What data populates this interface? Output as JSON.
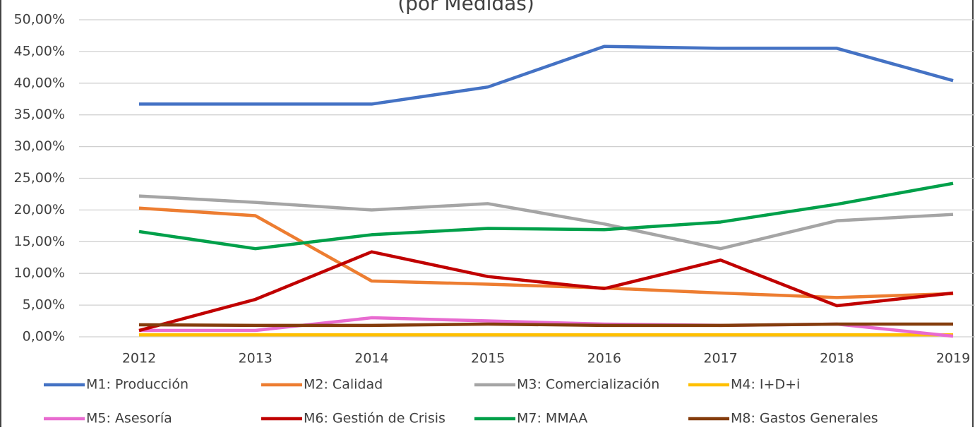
{
  "chart_data": {
    "type": "line",
    "title": "(por Medidas)",
    "categories": [
      "2012",
      "2013",
      "2014",
      "2015",
      "2016",
      "2017",
      "2018",
      "2019"
    ],
    "series": [
      {
        "name": "M1: Producción",
        "color": "#4472c4",
        "values": [
          36.7,
          36.7,
          36.7,
          39.4,
          45.8,
          45.5,
          45.5,
          40.4
        ]
      },
      {
        "name": "M2: Calidad",
        "color": "#ed7d31",
        "values": [
          20.3,
          19.1,
          8.8,
          8.3,
          7.7,
          6.9,
          6.2,
          6.8
        ]
      },
      {
        "name": "M3: Comercialización",
        "color": "#a5a5a5",
        "values": [
          22.2,
          21.2,
          20.0,
          21.0,
          17.8,
          13.9,
          18.3,
          19.3
        ]
      },
      {
        "name": "M4: I+D+i",
        "color": "#ffc000",
        "values": [
          0.3,
          0.3,
          0.3,
          0.3,
          0.3,
          0.3,
          0.3,
          0.3
        ]
      },
      {
        "name": "M5: Asesoría",
        "color": "#e86bd0",
        "values": [
          1.0,
          1.0,
          3.0,
          2.5,
          2.0,
          1.8,
          2.0,
          0.1
        ]
      },
      {
        "name": "M6: Gestión de Crisis",
        "color": "#c00000",
        "values": [
          1.0,
          5.9,
          13.4,
          9.5,
          7.6,
          12.1,
          4.9,
          6.9
        ]
      },
      {
        "name": "M7: MMAA",
        "color": "#00a04a",
        "values": [
          16.6,
          13.9,
          16.1,
          17.1,
          16.9,
          18.1,
          20.9,
          24.2
        ]
      },
      {
        "name": "M8: Gastos Generales",
        "color": "#843c0c",
        "values": [
          1.9,
          1.8,
          1.8,
          2.0,
          1.8,
          1.8,
          2.0,
          2.0
        ]
      }
    ],
    "ylim": [
      0,
      50
    ],
    "yticks": [
      {
        "value": 0,
        "label": "0,00%"
      },
      {
        "value": 5,
        "label": "5,00%"
      },
      {
        "value": 10,
        "label": "10,00%"
      },
      {
        "value": 15,
        "label": "15,00%"
      },
      {
        "value": 20,
        "label": "20,00%"
      },
      {
        "value": 25,
        "label": "25,00%"
      },
      {
        "value": 30,
        "label": "30,00%"
      },
      {
        "value": 35,
        "label": "35,00%"
      },
      {
        "value": 40,
        "label": "40,00%"
      },
      {
        "value": 45,
        "label": "45,00%"
      },
      {
        "value": 50,
        "label": "50,00%"
      }
    ],
    "grid": true
  }
}
